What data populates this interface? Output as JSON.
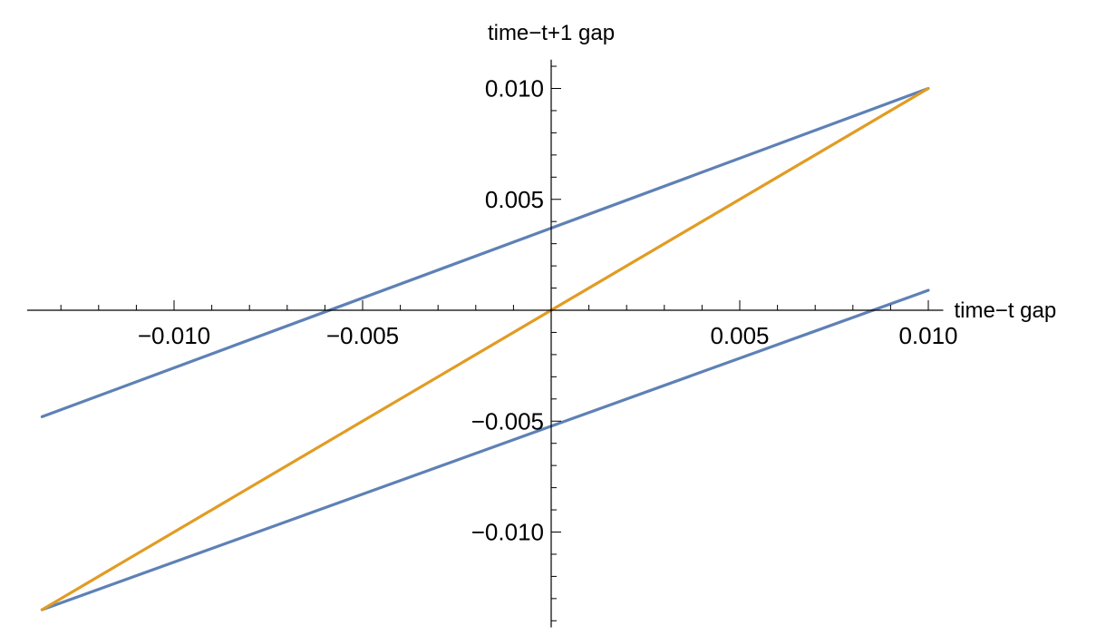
{
  "chart_data": {
    "type": "line",
    "title": "",
    "xlabel": "time−t gap",
    "ylabel": "time−t+1 gap",
    "xlim": [
      -0.0138,
      0.0103
    ],
    "ylim": [
      -0.0143,
      0.0113
    ],
    "grid": false,
    "x_ticks": [
      {
        "value": -0.01,
        "label": "−0.010"
      },
      {
        "value": -0.005,
        "label": "−0.005"
      },
      {
        "value": 0.005,
        "label": "0.005"
      },
      {
        "value": 0.01,
        "label": "0.010"
      }
    ],
    "y_ticks": [
      {
        "value": 0.01,
        "label": "0.010"
      },
      {
        "value": 0.005,
        "label": "0.005"
      },
      {
        "value": -0.005,
        "label": "−0.005"
      },
      {
        "value": -0.01,
        "label": "−0.010"
      }
    ],
    "series": [
      {
        "color": "#5E81B5",
        "x": [
          -0.0135,
          0.01
        ],
        "y": [
          -0.0048,
          0.01
        ]
      },
      {
        "color": "#5E81B5",
        "x": [
          -0.0135,
          0.01
        ],
        "y": [
          -0.0135,
          0.0009
        ]
      },
      {
        "color": "#E19C24",
        "x": [
          -0.0135,
          0.01
        ],
        "y": [
          -0.0135,
          0.01
        ]
      }
    ]
  }
}
